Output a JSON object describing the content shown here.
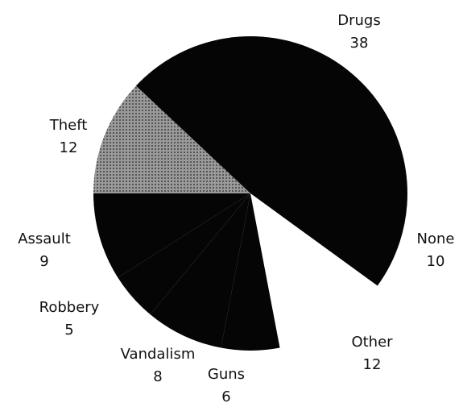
{
  "chart_data": {
    "type": "pie",
    "categories": [
      "Drugs",
      "None",
      "Other",
      "Guns",
      "Vandalism",
      "Robbery",
      "Assault",
      "Theft"
    ],
    "values": [
      38,
      10,
      12,
      6,
      8,
      5,
      9,
      12
    ],
    "colors": [
      "#050505",
      "#050505",
      "#ffffff",
      "#050505",
      "#050505",
      "#050505",
      "#050505",
      "#8a8a8a"
    ]
  }
}
